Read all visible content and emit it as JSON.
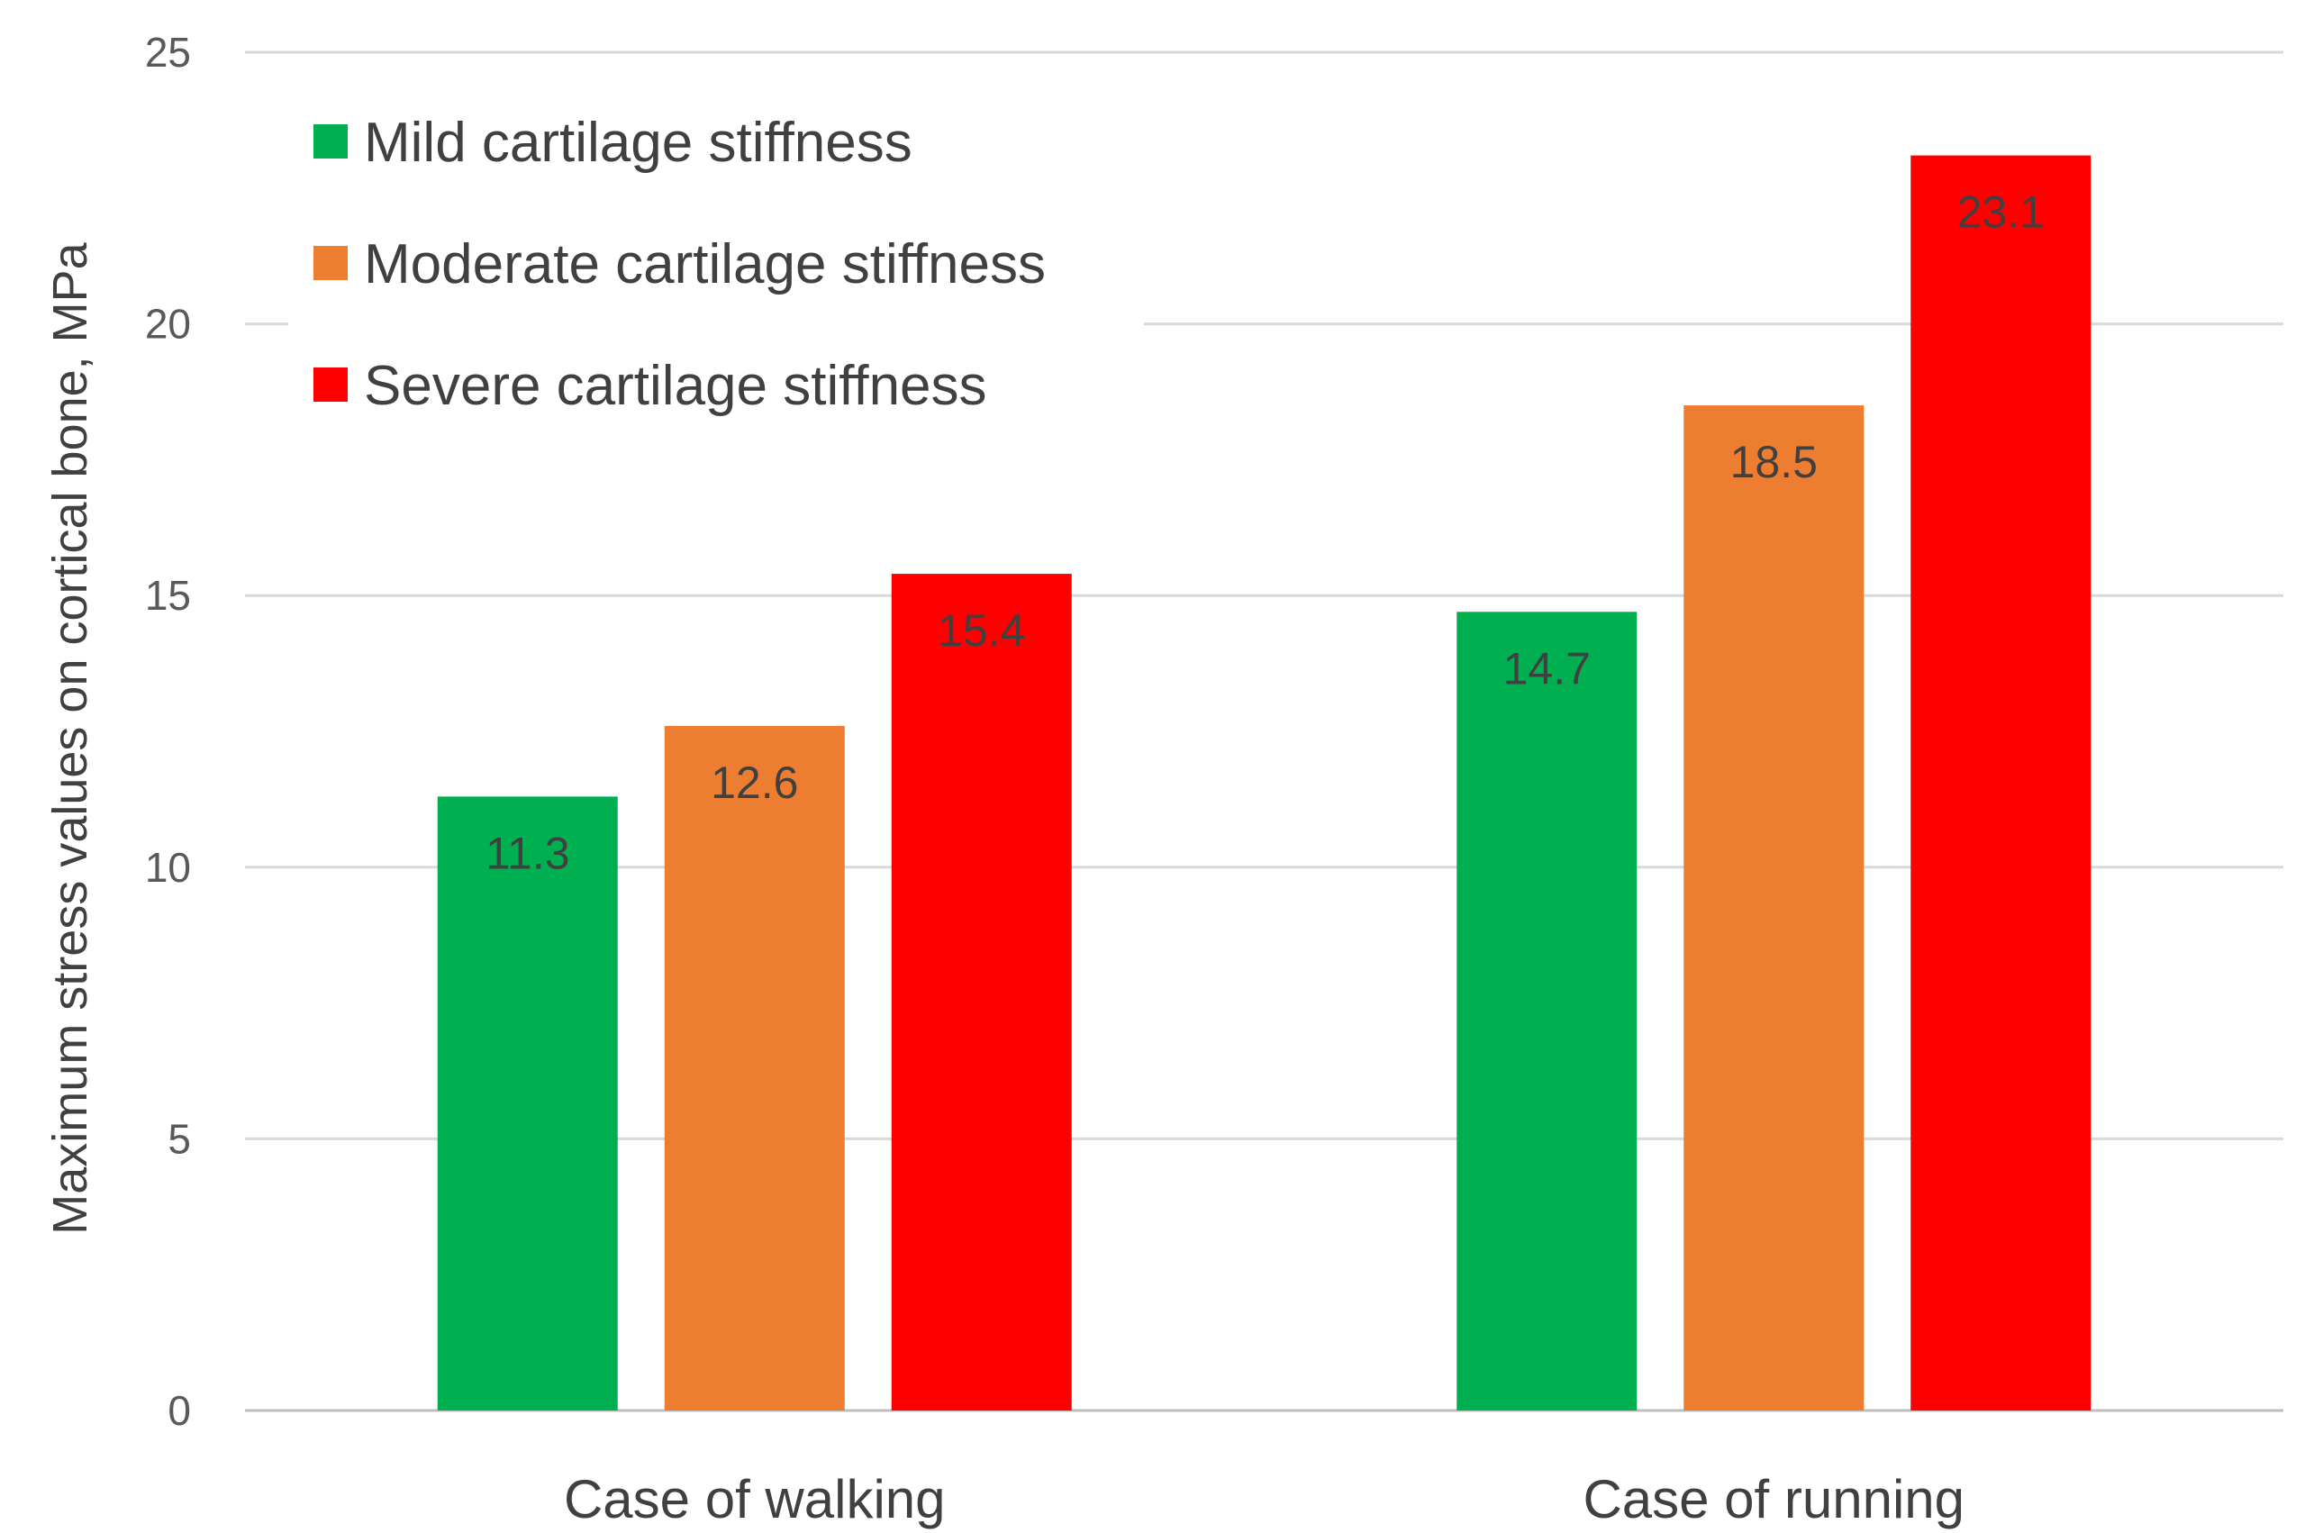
{
  "chart_data": {
    "type": "bar",
    "title": "",
    "xlabel": "",
    "ylabel": "Maximum stress values on cortical bone, MPa",
    "ylim": [
      0,
      25
    ],
    "yticks": [
      0,
      5,
      10,
      15,
      20,
      25
    ],
    "grid": true,
    "legend_position": "top-left",
    "categories": [
      "Case of walking",
      "Case of running"
    ],
    "series": [
      {
        "name": "Mild cartilage stiffness",
        "color": "#00b050",
        "values": [
          11.3,
          14.7
        ],
        "labels": [
          "11.3",
          "14.7"
        ]
      },
      {
        "name": "Moderate cartilage stiffness",
        "color": "#ed7d31",
        "values": [
          12.6,
          18.5
        ],
        "labels": [
          "12.6",
          "18.5"
        ]
      },
      {
        "name": "Severe cartilage stiffness",
        "color": "#ff0000",
        "values": [
          15.4,
          23.1
        ],
        "labels": [
          "15.4",
          "23.1"
        ]
      }
    ]
  }
}
